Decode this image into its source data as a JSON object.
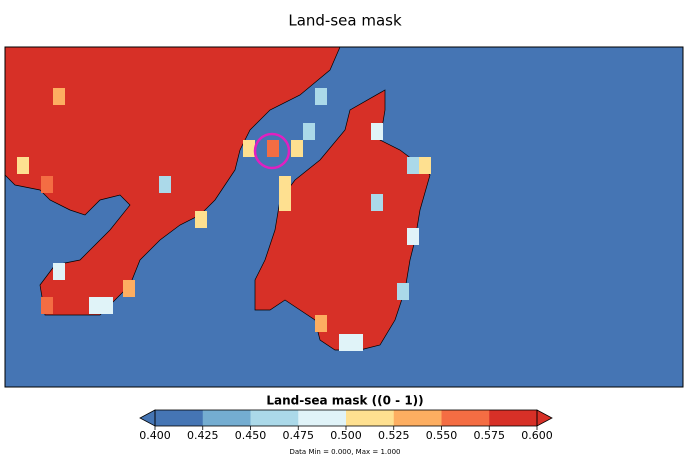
{
  "title": "Land-sea mask",
  "colorbar": {
    "label": "Land-sea mask ((0 - 1))",
    "ticks": [
      {
        "value": 0.4,
        "label": "0.400"
      },
      {
        "value": 0.425,
        "label": "0.425"
      },
      {
        "value": 0.45,
        "label": "0.450"
      },
      {
        "value": 0.475,
        "label": "0.475"
      },
      {
        "value": 0.5,
        "label": "0.500"
      },
      {
        "value": 0.525,
        "label": "0.525"
      },
      {
        "value": 0.55,
        "label": "0.550"
      },
      {
        "value": 0.575,
        "label": "0.575"
      },
      {
        "value": 0.6,
        "label": "0.600"
      }
    ],
    "colors": [
      "#4575b4",
      "#74add1",
      "#abd9e9",
      "#e0f3f8",
      "#fee090",
      "#fdae61",
      "#f46d43",
      "#d73027"
    ]
  },
  "footer": "Data Min = 0.000, Max = 1.000"
}
